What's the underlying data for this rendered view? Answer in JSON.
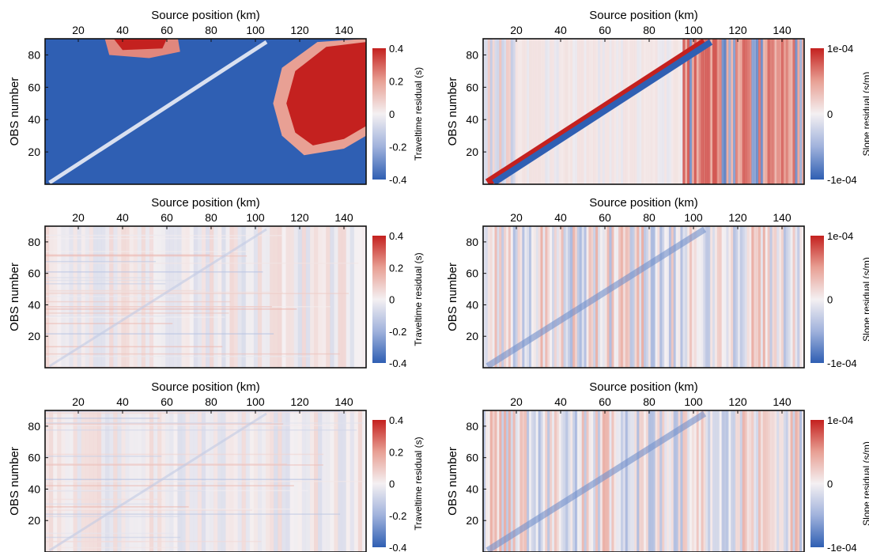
{
  "figure": {
    "colors": {
      "blue": "#2f5fb3",
      "light_blue": "#c9d3ea",
      "white": "#f4f0f2",
      "light_red": "#f0c8c0",
      "red": "#c4211f",
      "frame": "#111111"
    }
  },
  "chart_data": [
    {
      "id": "traveltime_1",
      "type": "heatmap",
      "xlabel": "Source position (km)",
      "ylabel": "OBS number",
      "xticks": [
        "20",
        "40",
        "60",
        "80",
        "100",
        "120",
        "140"
      ],
      "yticks": [
        "20",
        "40",
        "60",
        "80"
      ],
      "xlim": [
        5,
        150
      ],
      "ylim": [
        0,
        90
      ],
      "colorbar": {
        "label": "Traveltime residual (s)",
        "ticks": [
          "0.4",
          "0.2",
          "0",
          "-0.2",
          "-0.4"
        ],
        "range": [
          -0.4,
          0.4
        ]
      },
      "pattern": "saturated"
    },
    {
      "id": "slope_1",
      "type": "heatmap",
      "xlabel": "Source position (km)",
      "ylabel": "OBS number",
      "xticks": [
        "20",
        "40",
        "60",
        "80",
        "100",
        "120",
        "140"
      ],
      "yticks": [
        "20",
        "40",
        "60",
        "80"
      ],
      "xlim": [
        5,
        150
      ],
      "ylim": [
        0,
        90
      ],
      "colorbar": {
        "label": "Slope residual (s/m)",
        "ticks": [
          "1e-04",
          "0",
          "-1e-04"
        ],
        "range": [
          -0.0001,
          0.0001
        ]
      },
      "pattern": "striped"
    },
    {
      "id": "traveltime_2",
      "type": "heatmap",
      "xlabel": "Source position (km)",
      "ylabel": "OBS number",
      "xticks": [
        "20",
        "40",
        "60",
        "80",
        "100",
        "120",
        "140"
      ],
      "yticks": [
        "20",
        "40",
        "60",
        "80"
      ],
      "xlim": [
        5,
        150
      ],
      "ylim": [
        0,
        90
      ],
      "colorbar": {
        "label": "Traveltime residual (s)",
        "ticks": [
          "0.4",
          "0.2",
          "0",
          "-0.2",
          "-0.4"
        ],
        "range": [
          -0.4,
          0.4
        ]
      },
      "pattern": "faint"
    },
    {
      "id": "slope_2",
      "type": "heatmap",
      "xlabel": "Source position (km)",
      "ylabel": "OBS number",
      "xticks": [
        "20",
        "40",
        "60",
        "80",
        "100",
        "120",
        "140"
      ],
      "yticks": [
        "20",
        "40",
        "60",
        "80"
      ],
      "xlim": [
        5,
        150
      ],
      "ylim": [
        0,
        90
      ],
      "colorbar": {
        "label": "Slope residual (s/m)",
        "ticks": [
          "1e-04",
          "0",
          "-1e-04"
        ],
        "range": [
          -0.0001,
          0.0001
        ]
      },
      "pattern": "speckled"
    },
    {
      "id": "traveltime_3",
      "type": "heatmap",
      "xlabel": "Source position (km)",
      "ylabel": "OBS number",
      "xticks": [
        "20",
        "40",
        "60",
        "80",
        "100",
        "120",
        "140"
      ],
      "yticks": [
        "20",
        "40",
        "60",
        "80"
      ],
      "xlim": [
        5,
        150
      ],
      "ylim": [
        0,
        90
      ],
      "colorbar": {
        "label": "Traveltime residual (s)",
        "ticks": [
          "0.4",
          "0.2",
          "0",
          "-0.2",
          "-0.4"
        ],
        "range": [
          -0.4,
          0.4
        ]
      },
      "pattern": "faint"
    },
    {
      "id": "slope_3",
      "type": "heatmap",
      "xlabel": "Source position (km)",
      "ylabel": "OBS number",
      "xticks": [
        "20",
        "40",
        "60",
        "80",
        "100",
        "120",
        "140"
      ],
      "yticks": [
        "20",
        "40",
        "60",
        "80"
      ],
      "xlim": [
        5,
        150
      ],
      "ylim": [
        0,
        90
      ],
      "colorbar": {
        "label": "Slope residual (s/m)",
        "ticks": [
          "1e-04",
          "0",
          "-1e-04"
        ],
        "range": [
          -0.0001,
          0.0001
        ]
      },
      "pattern": "speckled"
    }
  ]
}
